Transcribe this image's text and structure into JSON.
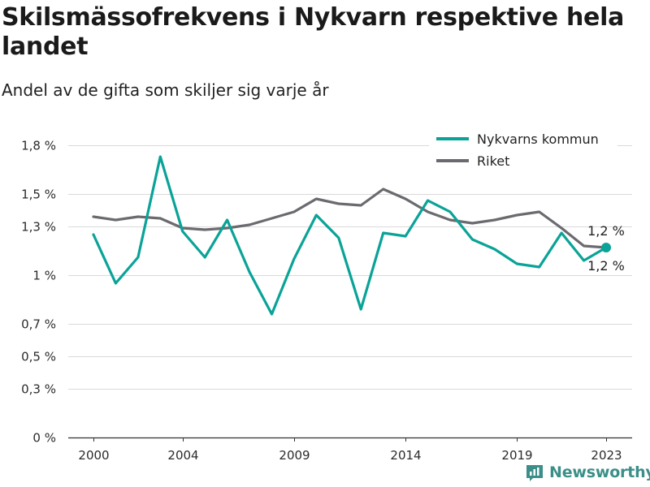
{
  "title": "Skilsmässofrekvens i Nykvarn respektive hela landet",
  "subtitle": "Andel av de gifta som skiljer sig varje år",
  "brand": "Newsworthy",
  "colors": {
    "nykvarn": "#0aa397",
    "riket": "#6b6a6f",
    "grid": "#d9d9d9",
    "axis": "#333333"
  },
  "chart_data": {
    "type": "line",
    "title": "Skilsmässofrekvens i Nykvarn respektive hela landet",
    "subtitle": "Andel av de gifta som skiljer sig varje år",
    "x": [
      2000,
      2001,
      2002,
      2003,
      2004,
      2005,
      2006,
      2007,
      2008,
      2009,
      2010,
      2011,
      2012,
      2013,
      2014,
      2015,
      2016,
      2017,
      2018,
      2019,
      2020,
      2021,
      2022,
      2023
    ],
    "x_ticks": [
      2000,
      2004,
      2009,
      2014,
      2019,
      2023
    ],
    "y_ticks": [
      0,
      0.3,
      0.5,
      0.7,
      1.0,
      1.3,
      1.5,
      1.8
    ],
    "y_tick_labels": [
      "0 %",
      "0,3 %",
      "0,5 %",
      "0,7 %",
      "1 %",
      "1,3 %",
      "1,5 %",
      "1,8 %"
    ],
    "ylim": [
      0,
      1.75
    ],
    "grid": true,
    "legend_position": "top-right",
    "series": [
      {
        "name": "Nykvarns kommun",
        "values": [
          1.25,
          0.95,
          1.11,
          1.73,
          1.27,
          1.11,
          1.34,
          1.02,
          0.76,
          1.1,
          1.37,
          1.23,
          0.79,
          1.26,
          1.24,
          1.46,
          1.39,
          1.22,
          1.16,
          1.07,
          1.05,
          1.26,
          1.09,
          1.17
        ],
        "end_label": "1,2 %"
      },
      {
        "name": "Riket",
        "values": [
          1.36,
          1.34,
          1.36,
          1.35,
          1.29,
          1.28,
          1.29,
          1.31,
          1.35,
          1.39,
          1.47,
          1.44,
          1.43,
          1.53,
          1.47,
          1.39,
          1.34,
          1.32,
          1.34,
          1.37,
          1.39,
          1.29,
          1.18,
          1.17
        ],
        "end_label": "1,2 %"
      }
    ]
  }
}
